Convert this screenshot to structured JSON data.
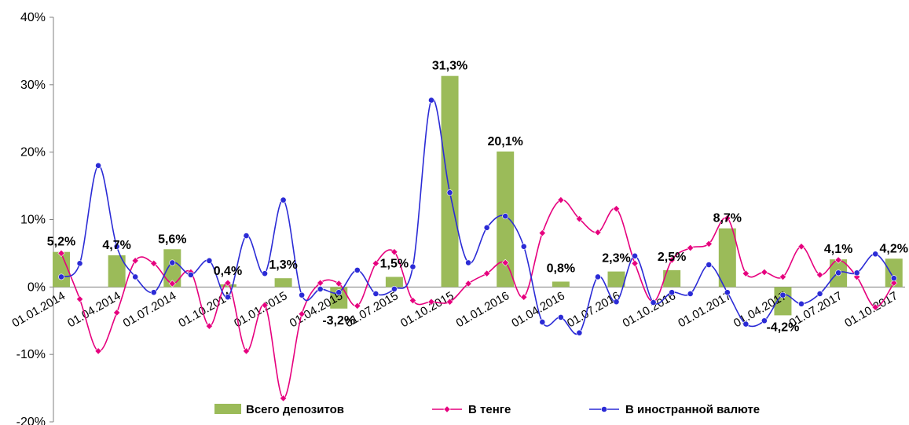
{
  "chart_data": {
    "type": "bar",
    "title": "",
    "xlabel": "",
    "ylabel": "",
    "ylim": [
      -20,
      40
    ],
    "y_ticks": [
      "40%",
      "30%",
      "20%",
      "10%",
      "0%",
      "-10%",
      "-20%"
    ],
    "y_tick_values": [
      40,
      30,
      20,
      10,
      0,
      -10,
      -20
    ],
    "grid": false,
    "legend_position": "bottom",
    "x_tick_labels": [
      "01.01.2014",
      "01.04.2014",
      "01.07.2014",
      "01.10.2014",
      "01.01.2015",
      "01.04.2015",
      "01.07.2015",
      "01.10.2015",
      "01.01.2016",
      "01.04.2016",
      "01.07.2016",
      "01.10.2016",
      "01.01.2017",
      "01.04.2017",
      "01.07.2017",
      "01.10.2017"
    ],
    "bars": {
      "name": "Всего депозитов",
      "color": "#9bbb59",
      "x_index": [
        0,
        3,
        6,
        9,
        12,
        15,
        18,
        21,
        24,
        27,
        30,
        33,
        36,
        39,
        42,
        45
      ],
      "values": [
        5.2,
        4.7,
        5.6,
        0.4,
        1.3,
        -3.2,
        1.5,
        31.3,
        20.1,
        0.8,
        2.3,
        2.5,
        8.7,
        -4.2,
        4.1,
        4.2
      ],
      "labels": [
        "5,2%",
        "4,7%",
        "5,6%",
        "0,4%",
        "1,3%",
        "-3,2%",
        "1,5%",
        "31,3%",
        "20,1%",
        "0,8%",
        "2,3%",
        "2,5%",
        "8,7%",
        "-4,2%",
        "4,1%",
        "4,2%"
      ]
    },
    "series": [
      {
        "name": "В тенге",
        "color": "#e6007e",
        "marker": "diamond",
        "values": [
          5.0,
          -1.8,
          -9.5,
          -3.8,
          3.9,
          3.5,
          0.5,
          2.2,
          -5.8,
          0.6,
          -9.5,
          -2.7,
          -16.5,
          -4.0,
          0.6,
          0.5,
          -2.8,
          3.5,
          5.2,
          -2.0,
          -2.2,
          -2.2,
          0.5,
          2.0,
          3.6,
          -1.5,
          8.0,
          12.9,
          10.1,
          8.1,
          11.6,
          3.5,
          -2.2,
          4.0,
          5.8,
          6.4,
          10.2,
          2.0,
          2.2,
          1.5,
          6.0,
          1.8,
          4.0,
          1.5,
          -3.0,
          0.6
        ]
      },
      {
        "name": "В иностранной валюте",
        "color": "#2b2bd6",
        "marker": "circle",
        "values": [
          1.5,
          3.5,
          18.0,
          6.0,
          1.5,
          -0.8,
          3.6,
          1.8,
          3.9,
          -1.5,
          7.6,
          2.0,
          12.9,
          -1.2,
          -0.3,
          -0.8,
          2.5,
          -1.0,
          -0.3,
          3.0,
          27.7,
          14.0,
          3.6,
          8.8,
          10.5,
          6.0,
          -5.2,
          -4.5,
          -6.8,
          1.5,
          -2.2,
          4.6,
          -2.3,
          -0.8,
          -1.0,
          3.3,
          -0.8,
          -5.5,
          -5.0,
          -1.2,
          -2.5,
          -1.0,
          2.1,
          2.1,
          4.9,
          1.3
        ]
      }
    ]
  }
}
